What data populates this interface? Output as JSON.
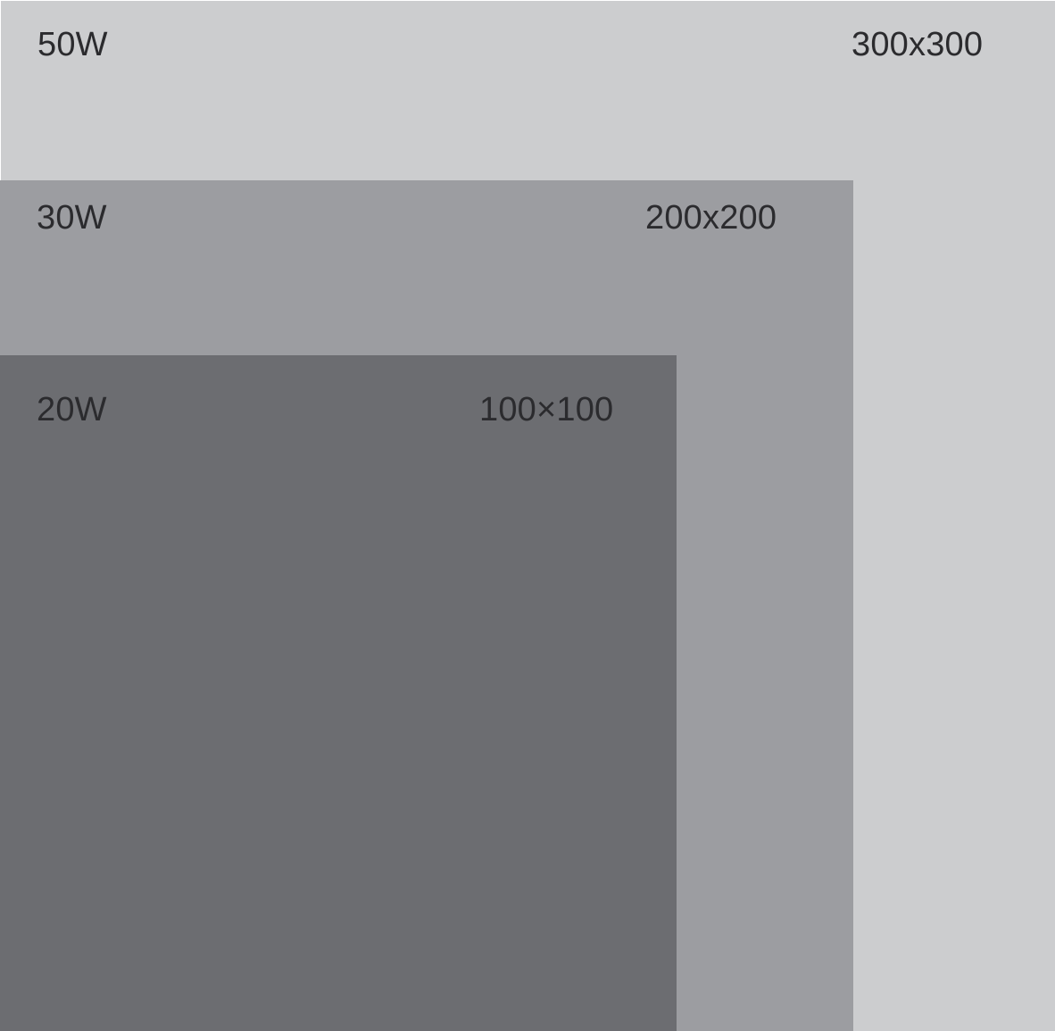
{
  "tiers": [
    {
      "power": "50W",
      "size": "300x300",
      "color": "#cccdcf"
    },
    {
      "power": "30W",
      "size": "200x200",
      "color": "#9c9da1"
    },
    {
      "power": "20W",
      "size": "100×100",
      "color": "#6c6d71"
    }
  ]
}
